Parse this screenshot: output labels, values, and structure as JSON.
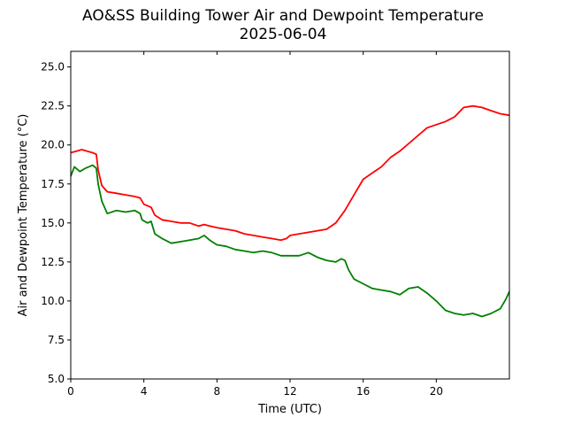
{
  "chart_data": {
    "type": "line",
    "title": "AO&SS Building Tower Air and Dewpoint Temperature",
    "subtitle": "2025-06-04",
    "xlabel": "Time (UTC)",
    "ylabel": "Air and Dewpoint Temperature (°C)",
    "xlim": [
      0,
      24
    ],
    "ylim": [
      5.0,
      26.0
    ],
    "xticks": [
      0,
      4,
      8,
      12,
      16,
      20
    ],
    "xtick_labels": [
      "0",
      "4",
      "8",
      "12",
      "16",
      "20"
    ],
    "yticks": [
      5.0,
      7.5,
      10.0,
      12.5,
      15.0,
      17.5,
      20.0,
      22.5,
      25.0
    ],
    "ytick_labels": [
      "5.0",
      "7.5",
      "10.0",
      "12.5",
      "15.0",
      "17.5",
      "20.0",
      "22.5",
      "25.0"
    ],
    "grid": false,
    "series": [
      {
        "color": "#ff0000",
        "x": [
          0,
          0.3,
          0.6,
          0.9,
          1.2,
          1.4,
          1.5,
          1.7,
          2.0,
          2.5,
          3.0,
          3.5,
          3.8,
          4.0,
          4.4,
          4.6,
          5.0,
          5.5,
          6.0,
          6.5,
          7.0,
          7.3,
          7.6,
          8.0,
          8.5,
          9.0,
          9.5,
          10.0,
          10.5,
          11.0,
          11.5,
          11.8,
          12.0,
          12.5,
          13.0,
          13.5,
          14.0,
          14.5,
          15.0,
          15.5,
          16.0,
          16.5,
          17.0,
          17.5,
          18.0,
          18.5,
          19.0,
          19.5,
          20.0,
          20.5,
          21.0,
          21.5,
          22.0,
          22.5,
          23.0,
          23.5,
          24.0
        ],
        "y": [
          19.5,
          19.6,
          19.7,
          19.6,
          19.5,
          19.4,
          18.4,
          17.4,
          17.0,
          16.9,
          16.8,
          16.7,
          16.6,
          16.2,
          16.0,
          15.5,
          15.2,
          15.1,
          15.0,
          15.0,
          14.8,
          14.9,
          14.8,
          14.7,
          14.6,
          14.5,
          14.3,
          14.2,
          14.1,
          14.0,
          13.9,
          14.0,
          14.2,
          14.3,
          14.4,
          14.5,
          14.6,
          15.0,
          15.8,
          16.8,
          17.8,
          18.2,
          18.6,
          19.2,
          19.6,
          20.1,
          20.6,
          21.1,
          21.3,
          21.5,
          21.8,
          22.4,
          22.5,
          22.4,
          22.2,
          22.0,
          21.9
        ]
      },
      {
        "color": "#008000",
        "x": [
          0,
          0.2,
          0.5,
          0.8,
          1.2,
          1.4,
          1.5,
          1.7,
          2.0,
          2.5,
          3.0,
          3.5,
          3.8,
          3.9,
          4.2,
          4.4,
          4.6,
          5.0,
          5.5,
          6.0,
          6.5,
          7.0,
          7.3,
          7.6,
          8.0,
          8.5,
          9.0,
          9.5,
          10.0,
          10.5,
          11.0,
          11.5,
          12.0,
          12.5,
          13.0,
          13.5,
          14.0,
          14.5,
          14.8,
          15.0,
          15.2,
          15.5,
          16.0,
          16.5,
          17.0,
          17.5,
          18.0,
          18.5,
          19.0,
          19.5,
          20.0,
          20.5,
          21.0,
          21.5,
          22.0,
          22.5,
          23.0,
          23.5,
          23.8,
          24.0
        ],
        "y": [
          18.0,
          18.6,
          18.3,
          18.5,
          18.7,
          18.5,
          17.5,
          16.4,
          15.6,
          15.8,
          15.7,
          15.8,
          15.6,
          15.2,
          15.0,
          15.1,
          14.3,
          14.0,
          13.7,
          13.8,
          13.9,
          14.0,
          14.2,
          13.9,
          13.6,
          13.5,
          13.3,
          13.2,
          13.1,
          13.2,
          13.1,
          12.9,
          12.9,
          12.9,
          13.1,
          12.8,
          12.6,
          12.5,
          12.7,
          12.6,
          12.0,
          11.4,
          11.1,
          10.8,
          10.7,
          10.6,
          10.4,
          10.8,
          10.9,
          10.5,
          10.0,
          9.4,
          9.2,
          9.1,
          9.2,
          9.0,
          9.2,
          9.5,
          10.1,
          10.6
        ]
      }
    ]
  }
}
